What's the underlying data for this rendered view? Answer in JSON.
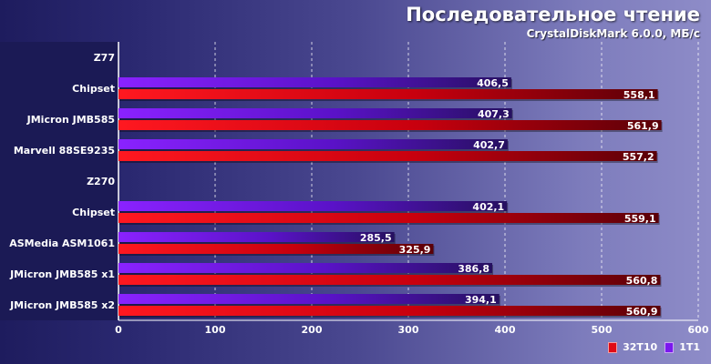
{
  "title": "Последовательное чтение",
  "subtitle": "CrystalDiskMark 6.0.0, МБ/с",
  "colors": {
    "series_32t10": "#e00a14",
    "series_1t1": "#7a18ee",
    "grid": "#ffffff"
  },
  "chart_data": {
    "type": "bar",
    "orientation": "horizontal",
    "categories": [
      "Z77",
      "Chipset",
      "JMicron JMB585",
      "Marvell 88SE9235",
      "Z270",
      "Chipset",
      "ASMedia ASM1061",
      "JMicron JMB585 x1",
      "JMicron JMB585 x2"
    ],
    "group_headers": [
      "Z77",
      "Z270"
    ],
    "series": [
      {
        "name": "32T10",
        "values": [
          null,
          558.1,
          561.9,
          557.2,
          null,
          559.1,
          325.9,
          560.8,
          560.9
        ]
      },
      {
        "name": "1T1",
        "values": [
          null,
          406.5,
          407.3,
          402.7,
          null,
          402.1,
          285.5,
          386.8,
          394.1
        ]
      }
    ],
    "xlim": [
      0,
      600
    ],
    "xticks": [
      0,
      100,
      200,
      300,
      400,
      500,
      600
    ],
    "grid": true,
    "legend_position": "bottom-right",
    "xlabel": "",
    "ylabel": ""
  }
}
